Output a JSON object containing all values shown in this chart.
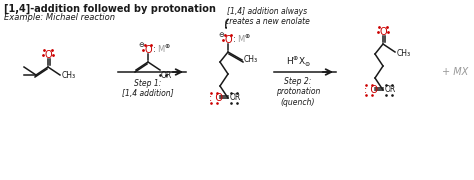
{
  "title": "[1,4]-addition followed by protonation",
  "subtitle": "Example: Michael reaction",
  "bg_color": "#ffffff",
  "black": "#1a1a1a",
  "red": "#cc0000",
  "gray": "#999999",
  "annotation": "[1,4] addition always\ncreates a new enolate",
  "step1": "Step 1:\n[1,4 addition]",
  "step2": "Step 2:\nprotonation\n(quench)",
  "plus_mx": "+ MX"
}
